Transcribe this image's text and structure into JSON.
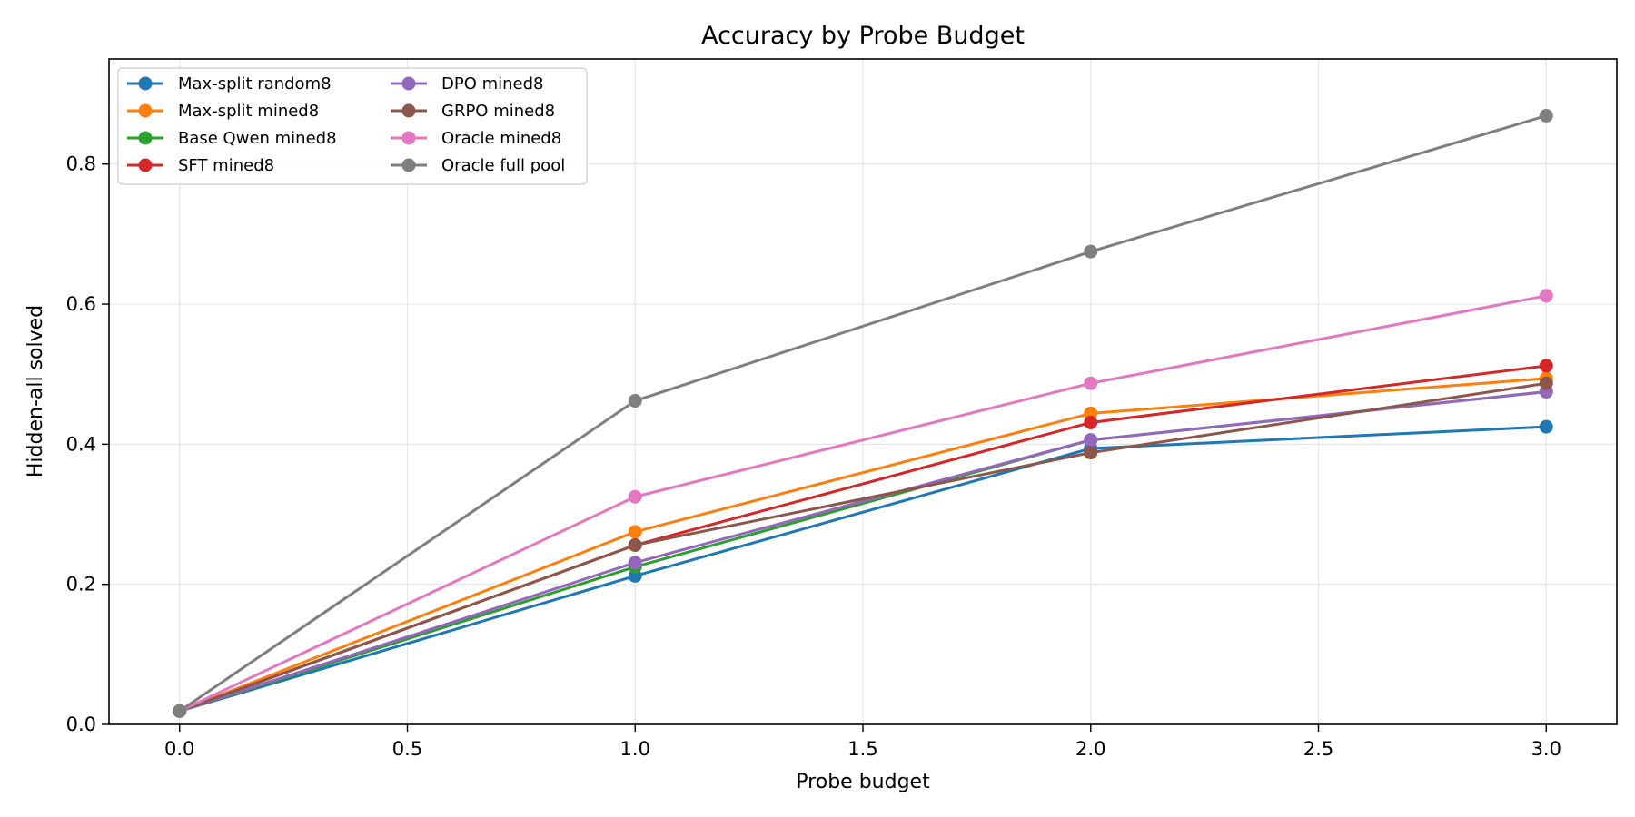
{
  "chart_data": {
    "type": "line",
    "title": "Accuracy by Probe Budget",
    "xlabel": "Probe budget",
    "ylabel": "Hidden-all solved",
    "x": [
      0,
      1,
      2,
      3
    ],
    "xlim": [
      -0.155,
      3.155
    ],
    "ylim": [
      0,
      0.95
    ],
    "xticks": [
      0.0,
      0.5,
      1.0,
      1.5,
      2.0,
      2.5,
      3.0
    ],
    "xtick_labels": [
      "0.0",
      "0.5",
      "1.0",
      "1.5",
      "2.0",
      "2.5",
      "3.0"
    ],
    "yticks": [
      0.0,
      0.2,
      0.4,
      0.6,
      0.8
    ],
    "ytick_labels": [
      "0.0",
      "0.2",
      "0.4",
      "0.6",
      "0.8"
    ],
    "grid": true,
    "legend_position": "top-left",
    "legend_columns": 2,
    "series": [
      {
        "name": "Max-split random8",
        "color": "#1f77b4",
        "values": [
          0.019,
          0.212,
          0.394,
          0.425
        ]
      },
      {
        "name": "Max-split mined8",
        "color": "#ff7f0e",
        "values": [
          0.019,
          0.275,
          0.444,
          0.494
        ]
      },
      {
        "name": "Base Qwen mined8",
        "color": "#2ca02c",
        "values": [
          0.019,
          0.225,
          0.406,
          0.475
        ]
      },
      {
        "name": "SFT mined8",
        "color": "#d62728",
        "values": [
          0.019,
          0.256,
          0.431,
          0.512
        ]
      },
      {
        "name": "DPO mined8",
        "color": "#9467bd",
        "values": [
          0.019,
          0.231,
          0.406,
          0.475
        ]
      },
      {
        "name": "GRPO mined8",
        "color": "#8c564b",
        "values": [
          0.019,
          0.256,
          0.388,
          0.487
        ]
      },
      {
        "name": "Oracle mined8",
        "color": "#e377c2",
        "values": [
          0.019,
          0.325,
          0.487,
          0.612
        ]
      },
      {
        "name": "Oracle full pool",
        "color": "#7f7f7f",
        "values": [
          0.019,
          0.462,
          0.675,
          0.869
        ]
      }
    ]
  }
}
